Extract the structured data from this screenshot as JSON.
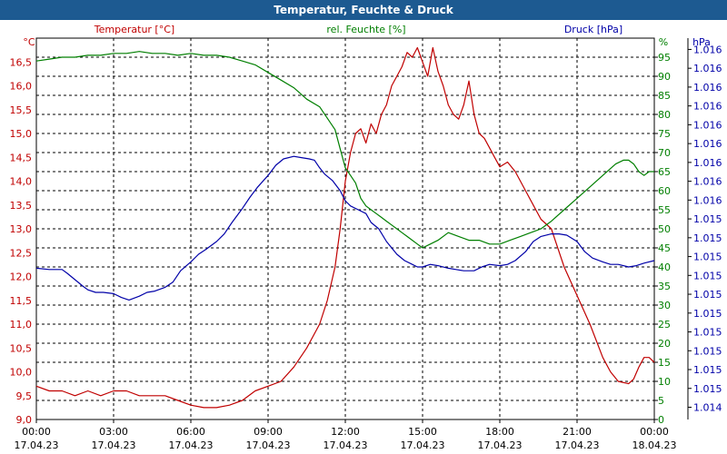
{
  "window": {
    "title": "Temperatur, Feuchte & Druck"
  },
  "chart_data": {
    "type": "line",
    "title": "Temperatur, Feuchte & Druck",
    "legend_labels": {
      "temperature": "Temperatur [°C]",
      "humidity": "rel. Feuchte [%]",
      "pressure": "Druck [hPa]"
    },
    "axes": {
      "temperature": {
        "unit": "°C",
        "range": [
          9.0,
          17.0
        ],
        "ticks": [
          "9,0",
          "9,5",
          "10,0",
          "10,5",
          "11,0",
          "11,5",
          "12,0",
          "12,5",
          "13,0",
          "13,5",
          "14,0",
          "14,5",
          "15,0",
          "15,5",
          "16,0",
          "16,5"
        ]
      },
      "humidity": {
        "unit": "%",
        "range": [
          0,
          100
        ],
        "ticks": [
          "0",
          "5",
          "10",
          "15",
          "20",
          "25",
          "30",
          "35",
          "40",
          "45",
          "50",
          "55",
          "60",
          "65",
          "70",
          "75",
          "80",
          "85",
          "90",
          "95"
        ]
      },
      "pressure": {
        "unit": "hPa",
        "range": [
          1014,
          1017
        ],
        "ticks": [
          "1.014",
          "1.015",
          "1.015",
          "1.015",
          "1.015",
          "1.015",
          "1.015",
          "1.015",
          "1.015",
          "1.015",
          "1.015",
          "1.016",
          "1.016",
          "1.016",
          "1.016",
          "1.016",
          "1.016",
          "1.016",
          "1.016",
          "1.016"
        ]
      },
      "x": {
        "times": [
          "00:00",
          "03:00",
          "06:00",
          "09:00",
          "12:00",
          "15:00",
          "18:00",
          "21:00",
          "00:00"
        ],
        "dates": [
          "17.04.23",
          "17.04.23",
          "17.04.23",
          "17.04.23",
          "17.04.23",
          "17.04.23",
          "17.04.23",
          "17.04.23",
          "18.04.23"
        ]
      }
    },
    "grid": true,
    "colors": {
      "temperature": "#c00000",
      "humidity": "#007f00",
      "pressure": "#0000a8",
      "title_bar": "#1d5a91"
    },
    "series": [
      {
        "name": "Temperatur [°C]",
        "key": "temperature",
        "x_hours": [
          0,
          0.5,
          1,
          1.5,
          2,
          2.5,
          3,
          3.5,
          4,
          4.5,
          5,
          5.5,
          6,
          6.5,
          7,
          7.5,
          8,
          8.5,
          9,
          9.5,
          10,
          10.5,
          11,
          11.3,
          11.6,
          11.8,
          12,
          12.2,
          12.4,
          12.6,
          12.8,
          13,
          13.2,
          13.4,
          13.6,
          13.8,
          14,
          14.2,
          14.4,
          14.6,
          14.8,
          15,
          15.2,
          15.4,
          15.6,
          15.8,
          16,
          16.2,
          16.4,
          16.6,
          16.8,
          17,
          17.2,
          17.4,
          17.6,
          17.8,
          18,
          18.3,
          18.6,
          19,
          19.3,
          19.6,
          20,
          20.5,
          21,
          21.5,
          22,
          22.3,
          22.6,
          23,
          23.2,
          23.4,
          23.6,
          23.8,
          24
        ],
        "values": [
          9.7,
          9.6,
          9.6,
          9.5,
          9.6,
          9.5,
          9.6,
          9.6,
          9.5,
          9.5,
          9.5,
          9.4,
          9.3,
          9.25,
          9.25,
          9.3,
          9.4,
          9.6,
          9.7,
          9.8,
          10.1,
          10.5,
          11.0,
          11.5,
          12.2,
          13.0,
          14.0,
          14.6,
          15.0,
          15.1,
          14.8,
          15.2,
          15.0,
          15.4,
          15.6,
          16.0,
          16.2,
          16.4,
          16.7,
          16.6,
          16.8,
          16.5,
          16.2,
          16.8,
          16.3,
          16.0,
          15.6,
          15.4,
          15.3,
          15.6,
          16.1,
          15.4,
          15.0,
          14.9,
          14.7,
          14.5,
          14.3,
          14.4,
          14.2,
          13.8,
          13.5,
          13.2,
          13.0,
          12.2,
          11.6,
          11.0,
          10.3,
          10.0,
          9.8,
          9.75,
          9.85,
          10.1,
          10.3,
          10.3,
          10.2
        ]
      },
      {
        "name": "rel. Feuchte [%]",
        "key": "humidity",
        "x_hours": [
          0,
          0.5,
          1,
          1.5,
          2,
          2.5,
          3,
          3.5,
          4,
          4.5,
          5,
          5.5,
          6,
          6.5,
          7,
          7.5,
          8,
          8.5,
          9,
          9.5,
          10,
          10.5,
          11,
          11.3,
          11.6,
          11.8,
          12,
          12.2,
          12.4,
          12.6,
          12.8,
          13,
          13.2,
          13.4,
          13.6,
          13.8,
          14,
          14.2,
          14.4,
          14.6,
          14.8,
          15,
          15.3,
          15.6,
          16,
          16.4,
          16.8,
          17.2,
          17.6,
          18,
          18.4,
          18.8,
          19.2,
          19.6,
          20,
          20.5,
          21,
          21.5,
          22,
          22.5,
          22.8,
          23,
          23.2,
          23.4,
          23.6,
          23.8,
          24
        ],
        "values": [
          94,
          94.5,
          95,
          95,
          95.5,
          95.5,
          96,
          96,
          96.5,
          96,
          96,
          95.5,
          96,
          95.5,
          95.5,
          95,
          94,
          93,
          91,
          89,
          87,
          84,
          82,
          79,
          76,
          71,
          66,
          64,
          62,
          58,
          56,
          55,
          54,
          53,
          52,
          51,
          50,
          49,
          48,
          47,
          46,
          45,
          46,
          47,
          49,
          48,
          47,
          47,
          46,
          46,
          47,
          48,
          49,
          50,
          52,
          55,
          58,
          61,
          64,
          67,
          68,
          68,
          67,
          65,
          64,
          65,
          65
        ]
      },
      {
        "name": "Druck [hPa]",
        "key": "pressure",
        "x_hours": [
          0,
          0.5,
          1,
          1.2,
          1.5,
          1.8,
          2,
          2.3,
          2.6,
          3,
          3.3,
          3.6,
          4,
          4.3,
          4.6,
          5,
          5.3,
          5.6,
          6,
          6.3,
          6.6,
          7,
          7.3,
          7.6,
          8,
          8.3,
          8.6,
          9,
          9.3,
          9.6,
          10,
          10.3,
          10.6,
          10.8,
          11,
          11.2,
          11.5,
          11.8,
          12,
          12.2,
          12.5,
          12.8,
          13,
          13.3,
          13.6,
          14,
          14.3,
          14.6,
          14.8,
          15,
          15.3,
          15.6,
          16,
          16.3,
          16.6,
          17,
          17.3,
          17.6,
          18,
          18.3,
          18.6,
          19,
          19.3,
          19.6,
          20,
          20.3,
          20.6,
          21,
          21.3,
          21.6,
          22,
          22.3,
          22.6,
          23,
          23.3,
          23.6,
          24
        ],
        "values": [
          1015.19,
          1015.18,
          1015.18,
          1015.15,
          1015.1,
          1015.05,
          1015.02,
          1015.0,
          1015.0,
          1014.99,
          1014.96,
          1014.94,
          1014.97,
          1015.0,
          1015.01,
          1015.04,
          1015.08,
          1015.17,
          1015.24,
          1015.3,
          1015.34,
          1015.4,
          1015.46,
          1015.55,
          1015.66,
          1015.75,
          1015.83,
          1015.92,
          1016.0,
          1016.05,
          1016.07,
          1016.06,
          1016.05,
          1016.04,
          1015.98,
          1015.93,
          1015.88,
          1015.8,
          1015.72,
          1015.68,
          1015.65,
          1015.62,
          1015.55,
          1015.5,
          1015.4,
          1015.3,
          1015.25,
          1015.22,
          1015.2,
          1015.2,
          1015.22,
          1015.21,
          1015.19,
          1015.18,
          1015.17,
          1015.17,
          1015.2,
          1015.22,
          1015.21,
          1015.22,
          1015.25,
          1015.32,
          1015.4,
          1015.44,
          1015.46,
          1015.46,
          1015.45,
          1015.4,
          1015.32,
          1015.27,
          1015.24,
          1015.22,
          1015.22,
          1015.2,
          1015.21,
          1015.23,
          1015.25
        ]
      }
    ]
  }
}
